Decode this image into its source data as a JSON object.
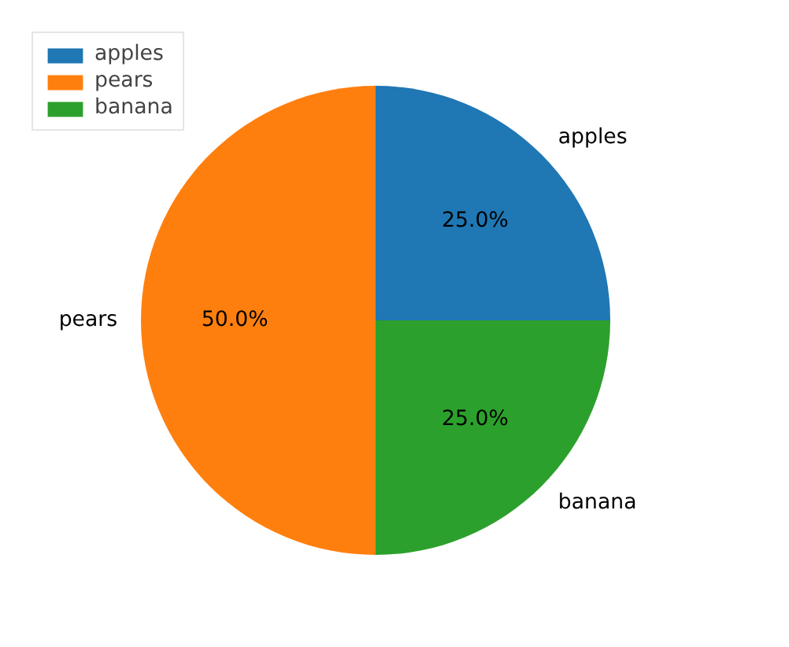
{
  "chart_data": {
    "type": "pie",
    "categories": [
      "apples",
      "pears",
      "banana"
    ],
    "values": [
      25,
      50,
      25
    ],
    "colors": [
      "#1f77b4",
      "#ff7f0e",
      "#2ca02c"
    ],
    "value_labels": [
      "25.0%",
      "50.0%",
      "25.0%"
    ],
    "legend": "top left"
  }
}
